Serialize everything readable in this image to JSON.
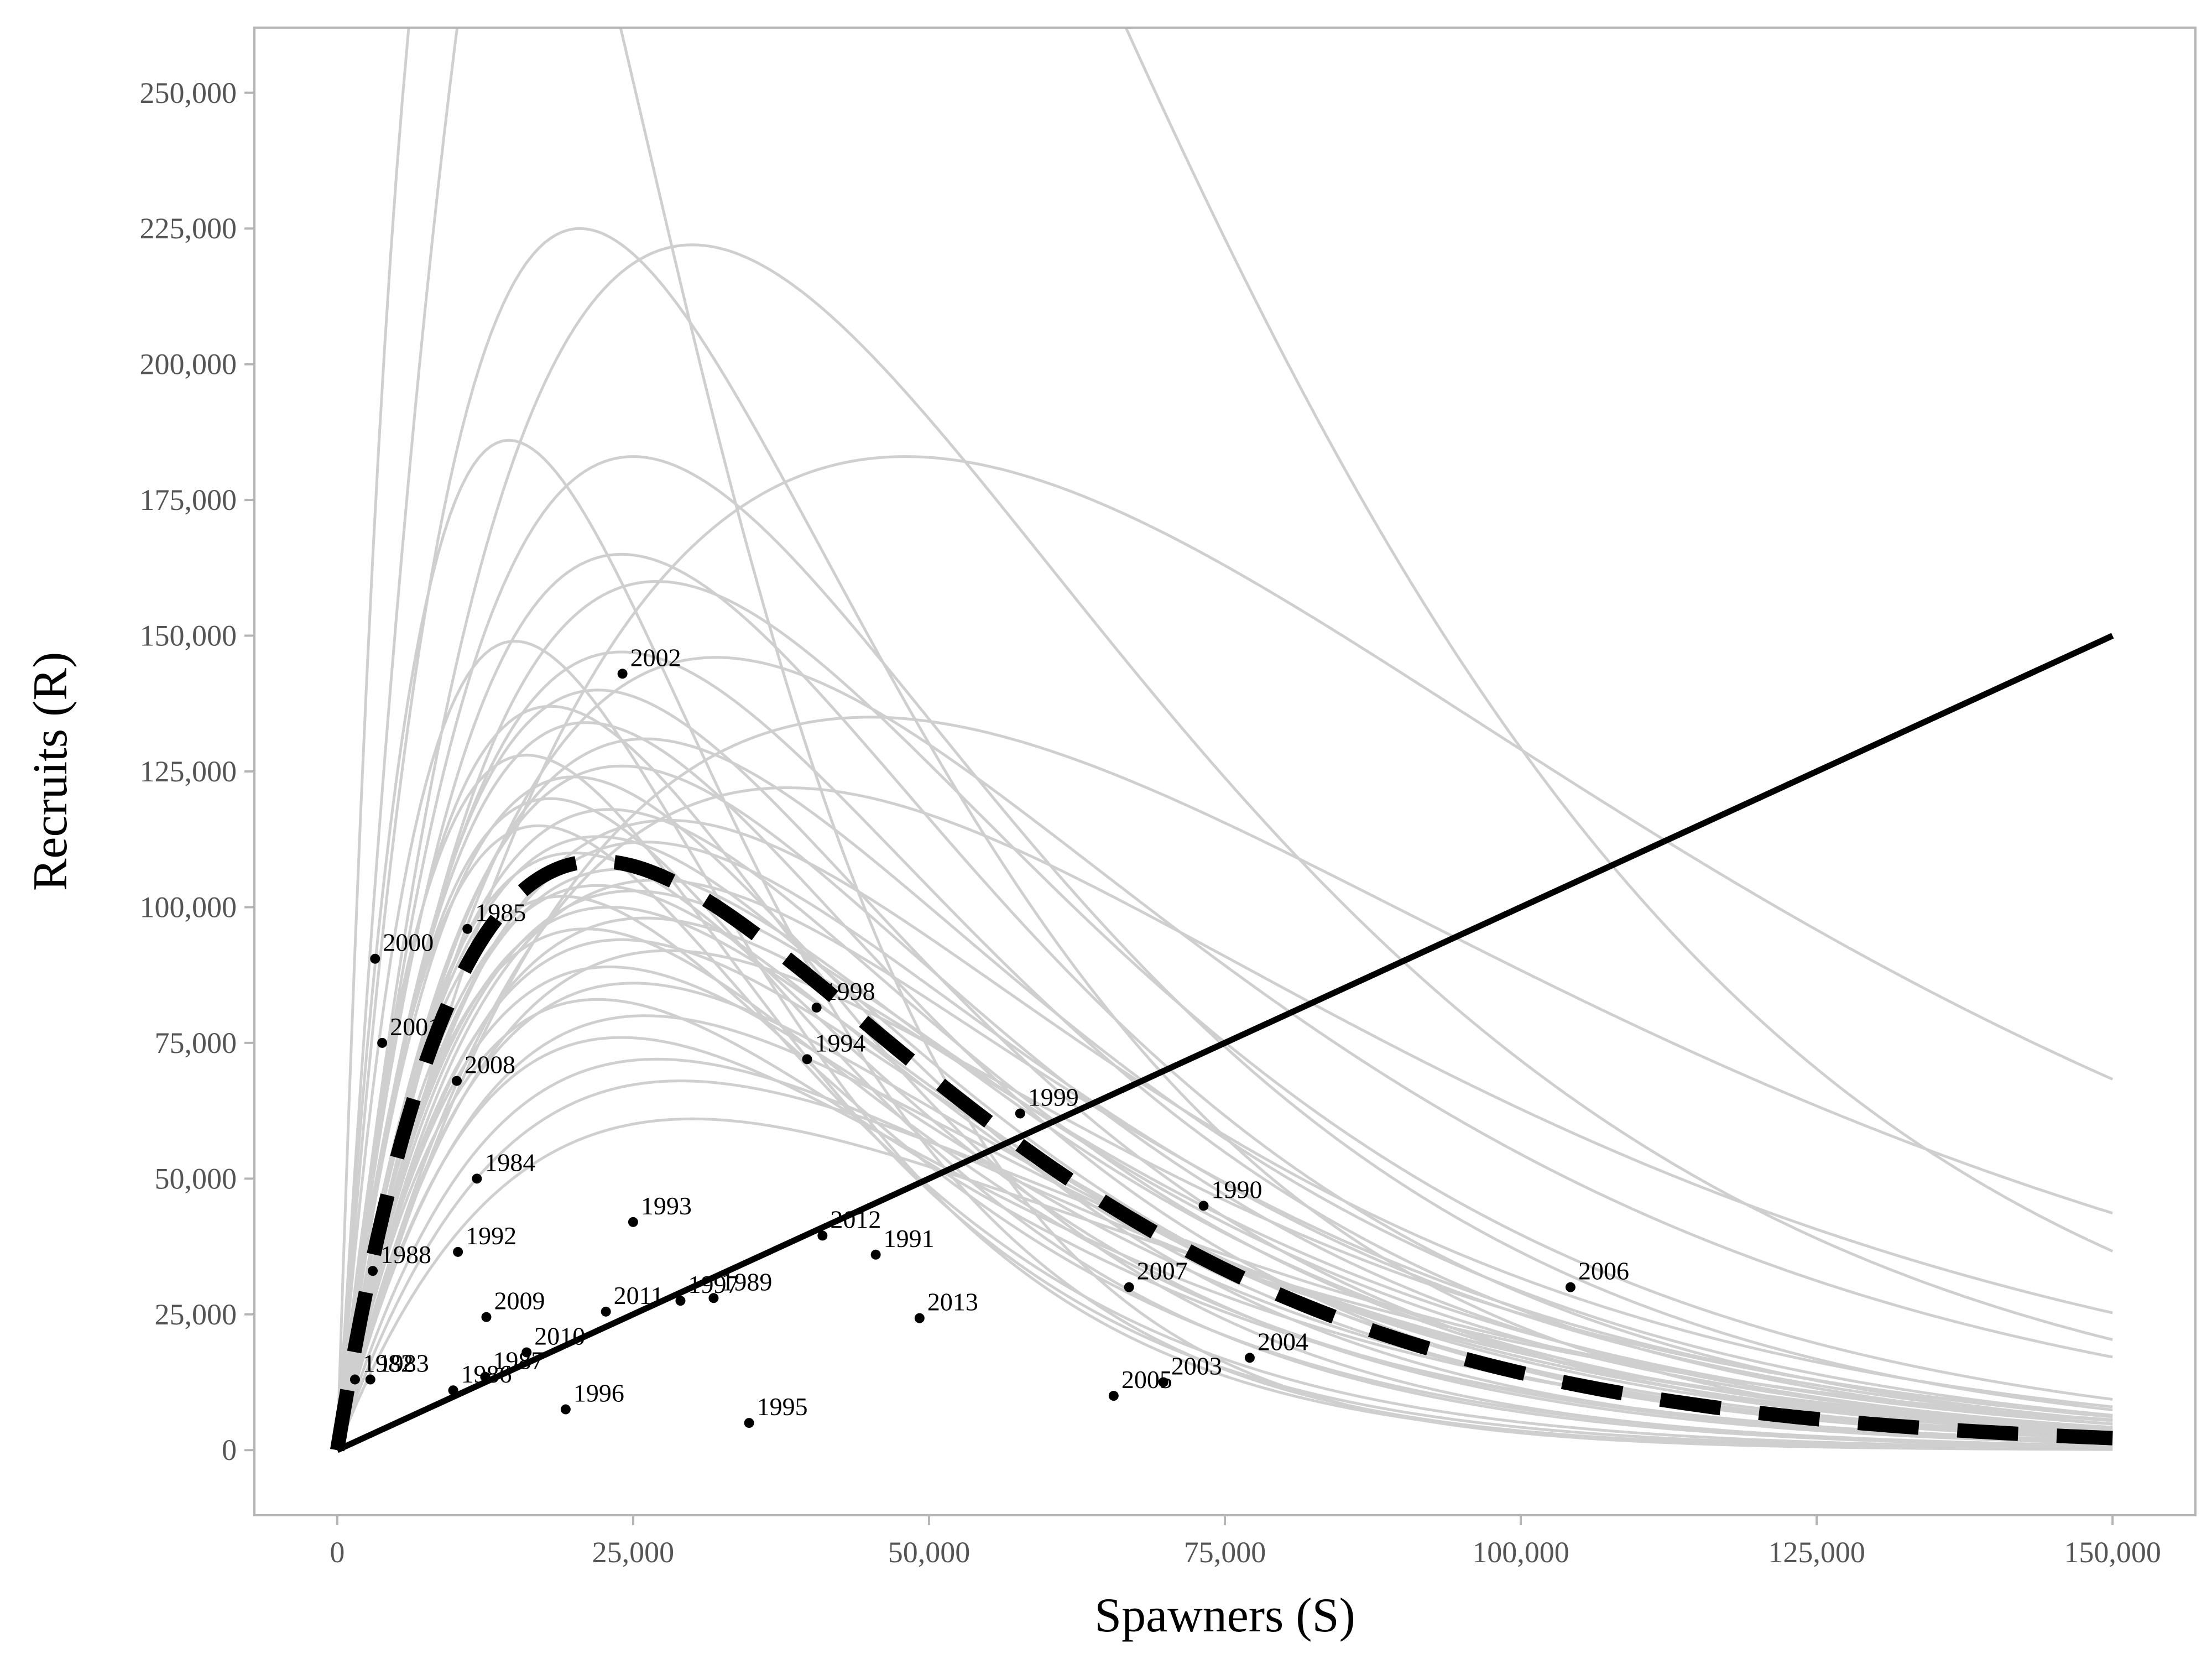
{
  "chart_data": {
    "type": "line",
    "xlabel": "Spawners (S)",
    "ylabel": "Recruits (R)",
    "xlim": [
      -7000,
      157000
    ],
    "ylim": [
      -12000,
      262000
    ],
    "x_ticks": [
      0,
      25000,
      50000,
      75000,
      100000,
      125000,
      150000
    ],
    "x_tick_labels": [
      "0",
      "25,000",
      "50,000",
      "75,000",
      "100,000",
      "125,000",
      "150,000"
    ],
    "y_ticks": [
      0,
      25000,
      50000,
      75000,
      100000,
      125000,
      150000,
      175000,
      200000,
      225000,
      250000
    ],
    "y_tick_labels": [
      "0",
      "25,000",
      "50,000",
      "75,000",
      "100,000",
      "125,000",
      "150,000",
      "175,000",
      "200,000",
      "225,000",
      "250,000"
    ],
    "grid": false,
    "colors": {
      "frame": "#b5b5b5",
      "posterior_curves": "#cfcfcf",
      "median_curve": "#000000",
      "replacement_line": "#000000",
      "points": "#000000"
    },
    "replacement_line": {
      "x": [
        0,
        150000
      ],
      "y": [
        0,
        150000
      ]
    },
    "median_ricker_curve": {
      "peak_S": 22000,
      "peak_R": 108500
    },
    "posterior_ricker_curves": [
      {
        "peak_S": 13000,
        "peak_R": 330000
      },
      {
        "peak_S": 20500,
        "peak_R": 225000
      },
      {
        "peak_S": 30000,
        "peak_R": 222000
      },
      {
        "peak_S": 30000,
        "peak_R": 400000
      },
      {
        "peak_S": 48000,
        "peak_R": 183000
      },
      {
        "peak_S": 14500,
        "peak_R": 186000
      },
      {
        "peak_S": 25000,
        "peak_R": 183000
      },
      {
        "peak_S": 24000,
        "peak_R": 165000
      },
      {
        "peak_S": 27000,
        "peak_R": 160000
      },
      {
        "peak_S": 15000,
        "peak_R": 149000
      },
      {
        "peak_S": 24000,
        "peak_R": 147000
      },
      {
        "peak_S": 32000,
        "peak_R": 146000
      },
      {
        "peak_S": 22000,
        "peak_R": 140000
      },
      {
        "peak_S": 18000,
        "peak_R": 137000
      },
      {
        "peak_S": 45000,
        "peak_R": 135000
      },
      {
        "peak_S": 21000,
        "peak_R": 134000
      },
      {
        "peak_S": 26000,
        "peak_R": 131000
      },
      {
        "peak_S": 16000,
        "peak_R": 128000
      },
      {
        "peak_S": 24000,
        "peak_R": 126000
      },
      {
        "peak_S": 20000,
        "peak_R": 124000
      },
      {
        "peak_S": 38000,
        "peak_R": 122000
      },
      {
        "peak_S": 18000,
        "peak_R": 120000
      },
      {
        "peak_S": 23000,
        "peak_R": 118000
      },
      {
        "peak_S": 28000,
        "peak_R": 116000
      },
      {
        "peak_S": 17000,
        "peak_R": 115000
      },
      {
        "peak_S": 22000,
        "peak_R": 113000
      },
      {
        "peak_S": 26000,
        "peak_R": 112000
      },
      {
        "peak_S": 20000,
        "peak_R": 110000
      },
      {
        "peak_S": 24000,
        "peak_R": 107000
      },
      {
        "peak_S": 27000,
        "peak_R": 105000
      },
      {
        "peak_S": 22000,
        "peak_R": 104000
      },
      {
        "peak_S": 25000,
        "peak_R": 103000
      },
      {
        "peak_S": 19000,
        "peak_R": 102000
      },
      {
        "peak_S": 23000,
        "peak_R": 100000
      },
      {
        "peak_S": 26000,
        "peak_R": 98000
      },
      {
        "peak_S": 21000,
        "peak_R": 96000
      },
      {
        "peak_S": 24000,
        "peak_R": 94000
      },
      {
        "peak_S": 28000,
        "peak_R": 92000
      },
      {
        "peak_S": 23000,
        "peak_R": 89000
      },
      {
        "peak_S": 25000,
        "peak_R": 86000
      },
      {
        "peak_S": 22000,
        "peak_R": 83000
      },
      {
        "peak_S": 26000,
        "peak_R": 80000
      },
      {
        "peak_S": 24000,
        "peak_R": 76000
      },
      {
        "peak_S": 27000,
        "peak_R": 72000
      },
      {
        "peak_S": 29000,
        "peak_R": 68000
      },
      {
        "peak_S": 30000,
        "peak_R": 61000
      }
    ],
    "points": [
      {
        "year": "1982",
        "x": 1500,
        "y": 13000
      },
      {
        "year": "1983",
        "x": 2800,
        "y": 13000
      },
      {
        "year": "1984",
        "x": 11800,
        "y": 50000
      },
      {
        "year": "1985",
        "x": 11000,
        "y": 96000
      },
      {
        "year": "1986",
        "x": 9800,
        "y": 11000
      },
      {
        "year": "1987",
        "x": 12500,
        "y": 13500
      },
      {
        "year": "1988",
        "x": 3000,
        "y": 33000
      },
      {
        "year": "1989",
        "x": 31800,
        "y": 28000
      },
      {
        "year": "1990",
        "x": 73200,
        "y": 45000
      },
      {
        "year": "1991",
        "x": 45500,
        "y": 36000
      },
      {
        "year": "1992",
        "x": 10200,
        "y": 36500
      },
      {
        "year": "1993",
        "x": 25000,
        "y": 42000
      },
      {
        "year": "1994",
        "x": 39700,
        "y": 72000
      },
      {
        "year": "1995",
        "x": 34800,
        "y": 5000
      },
      {
        "year": "1996",
        "x": 19300,
        "y": 7500
      },
      {
        "year": "1997",
        "x": 29000,
        "y": 27500
      },
      {
        "year": "1998",
        "x": 40500,
        "y": 81500
      },
      {
        "year": "1999",
        "x": 57700,
        "y": 62000
      },
      {
        "year": "2000",
        "x": 3200,
        "y": 90500
      },
      {
        "year": "2001",
        "x": 3800,
        "y": 75000
      },
      {
        "year": "2002",
        "x": 24100,
        "y": 143000
      },
      {
        "year": "2003",
        "x": 69800,
        "y": 12500
      },
      {
        "year": "2004",
        "x": 77100,
        "y": 17000
      },
      {
        "year": "2005",
        "x": 65600,
        "y": 10000
      },
      {
        "year": "2006",
        "x": 104200,
        "y": 30000
      },
      {
        "year": "2007",
        "x": 66900,
        "y": 30000
      },
      {
        "year": "2008",
        "x": 10100,
        "y": 68000
      },
      {
        "year": "2009",
        "x": 12600,
        "y": 24500
      },
      {
        "year": "2010",
        "x": 16000,
        "y": 18000
      },
      {
        "year": "2011",
        "x": 22700,
        "y": 25500
      },
      {
        "year": "2012",
        "x": 41000,
        "y": 39500
      },
      {
        "year": "2013",
        "x": 49200,
        "y": 24300
      }
    ]
  }
}
